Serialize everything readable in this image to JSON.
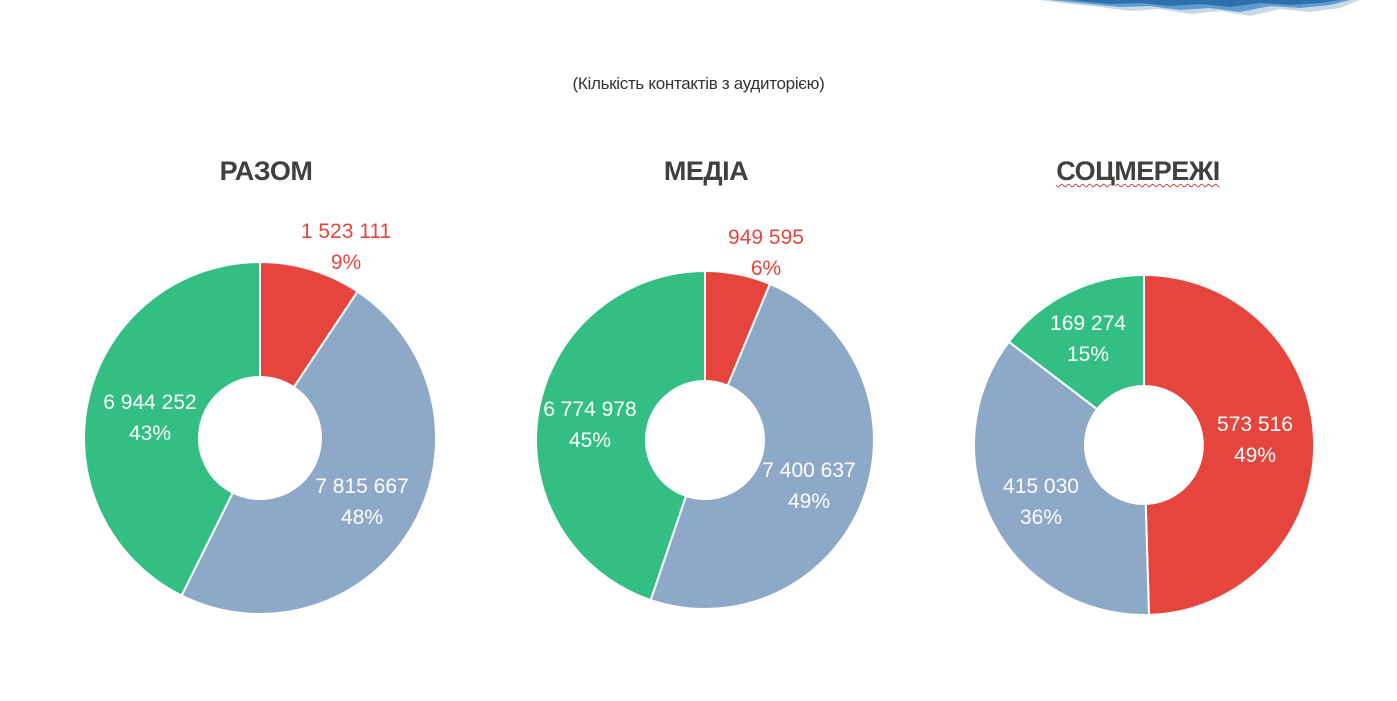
{
  "subtitle": "(Кількість контактів з аудиторією)",
  "colors": {
    "red": "#e5453d",
    "blue": "#8ea9c8",
    "green": "#33bf83",
    "title": "#404040",
    "outside_label": "#e5453d",
    "inside_label": "#ffffff"
  },
  "chart_data": [
    {
      "type": "pie",
      "title": "РАЗОМ",
      "slices": [
        {
          "value": 1523111,
          "value_label": "1 523 111",
          "percent_label": "9%",
          "color": "#e5453d"
        },
        {
          "value": 7815667,
          "value_label": "7 815 667",
          "percent_label": "48%",
          "color": "#8ea9c8"
        },
        {
          "value": 6944252,
          "value_label": "6 944 252",
          "percent_label": "43%",
          "color": "#33bf83"
        }
      ]
    },
    {
      "type": "pie",
      "title": "МЕДІА",
      "slices": [
        {
          "value": 949595,
          "value_label": "949 595",
          "percent_label": "6%",
          "color": "#e5453d"
        },
        {
          "value": 7400637,
          "value_label": "7 400 637",
          "percent_label": "49%",
          "color": "#8ea9c8"
        },
        {
          "value": 6774978,
          "value_label": "6 774 978",
          "percent_label": "45%",
          "color": "#33bf83"
        }
      ]
    },
    {
      "type": "pie",
      "title": "СОЦМЕРЕЖІ",
      "slices": [
        {
          "value": 573516,
          "value_label": "573 516",
          "percent_label": "49%",
          "color": "#e5453d"
        },
        {
          "value": 415030,
          "value_label": "415 030",
          "percent_label": "36%",
          "color": "#8ea9c8"
        },
        {
          "value": 169274,
          "value_label": "169 274",
          "percent_label": "15%",
          "color": "#33bf83"
        }
      ]
    }
  ]
}
